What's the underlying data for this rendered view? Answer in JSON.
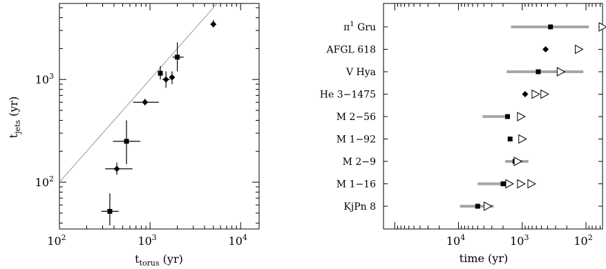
{
  "chart_data": [
    {
      "type": "scatter",
      "title": "",
      "xlabel": {
        "base": "t",
        "sub": "torus",
        "rest": " (yr)"
      },
      "ylabel": {
        "base": "t",
        "sub": "jets",
        "rest": " (yr)"
      },
      "xscale": "log",
      "yscale": "log",
      "xlim": [
        100,
        16000
      ],
      "ylim": [
        35,
        5500
      ],
      "xticks": [
        {
          "value": 100,
          "base": "10",
          "exp": "2"
        },
        {
          "value": 1000,
          "base": "10",
          "exp": "3"
        },
        {
          "value": 10000,
          "base": "10",
          "exp": "4"
        }
      ],
      "yticks": [
        {
          "value": 100,
          "base": "10",
          "exp": "2"
        },
        {
          "value": 1000,
          "base": "10",
          "exp": "3"
        }
      ],
      "reference_line": "y = x",
      "points": [
        {
          "x": 360,
          "y": 52,
          "xerr": [
            290,
            450
          ],
          "yerr": [
            38,
            78
          ],
          "marker": "square"
        },
        {
          "x": 430,
          "y": 135,
          "xerr": [
            320,
            640
          ],
          "yerr": [
            118,
            155
          ],
          "marker": "diamond"
        },
        {
          "x": 550,
          "y": 250,
          "xerr": [
            390,
            780
          ],
          "yerr": [
            150,
            400
          ],
          "marker": "square"
        },
        {
          "x": 880,
          "y": 600,
          "xerr": [
            650,
            1250
          ],
          "yerr": [
            560,
            650
          ],
          "marker": "diamond"
        },
        {
          "x": 1300,
          "y": 1150,
          "xerr": [
            1270,
            1330
          ],
          "yerr": [
            1000,
            1350
          ],
          "marker": "square"
        },
        {
          "x": 1500,
          "y": 1000,
          "xerr": [
            1370,
            1650
          ],
          "yerr": [
            830,
            1200
          ],
          "marker": "diamond"
        },
        {
          "x": 1750,
          "y": 1050,
          "xerr": [
            1640,
            1870
          ],
          "yerr": [
            900,
            1200
          ],
          "marker": "diamond"
        },
        {
          "x": 2000,
          "y": 1650,
          "xerr": [
            1770,
            2350
          ],
          "yerr": [
            1200,
            2300
          ],
          "marker": "square"
        },
        {
          "x": 5000,
          "y": 3450,
          "xerr": [
            4700,
            5300
          ],
          "yerr": [
            3200,
            3800
          ],
          "marker": "diamond"
        }
      ]
    },
    {
      "type": "scatter",
      "title": "",
      "xlabel": "time (yr)",
      "ylabel": "",
      "xscale": "log",
      "x_reversed": true,
      "xlim": [
        150000,
        55
      ],
      "xticks": [
        {
          "value": 10000,
          "base": "10",
          "exp": "4"
        },
        {
          "value": 1000,
          "base": "10",
          "exp": "3"
        },
        {
          "value": 100,
          "base": "10",
          "exp": "2"
        }
      ],
      "categories": [
        {
          "name": "π",
          "sup": "1",
          "suffix": " Gru"
        },
        {
          "name": "AFGL 618"
        },
        {
          "name": "V Hya"
        },
        {
          "name": "He 3−1475"
        },
        {
          "name": "M 2−56"
        },
        {
          "name": "M 1−92"
        },
        {
          "name": "M 2−9"
        },
        {
          "name": "M 1−16"
        },
        {
          "name": "KjPn 8"
        }
      ],
      "rows": [
        {
          "range": [
            1500,
            90
          ],
          "marker": "square",
          "value": 360,
          "triangles": [
            55
          ]
        },
        {
          "range": null,
          "marker": "diamond",
          "value": 430,
          "triangles": [
            130
          ]
        },
        {
          "range": [
            1750,
            110
          ],
          "marker": "square",
          "value": 560,
          "triangles": [
            250
          ]
        },
        {
          "range": null,
          "marker": "diamond",
          "value": 900,
          "triangles": [
            620,
            450
          ]
        },
        {
          "range": [
            4200,
            1750
          ],
          "marker": "square",
          "value": 1700,
          "triangles": [
            1050
          ]
        },
        {
          "range": null,
          "marker": "square",
          "value": 1550,
          "triangles": [
            1000
          ]
        },
        {
          "range": [
            1850,
            800
          ],
          "marker": "square",
          "value": 1300,
          "triangles": [
            1180
          ]
        },
        {
          "range": [
            5000,
            1500
          ],
          "marker": "square",
          "value": 2000,
          "triangles": [
            1600,
            1050,
            720
          ]
        },
        {
          "range": [
            9500,
            2800
          ],
          "marker": "square",
          "value": 5000,
          "triangles": [
            3500
          ]
        }
      ]
    }
  ]
}
